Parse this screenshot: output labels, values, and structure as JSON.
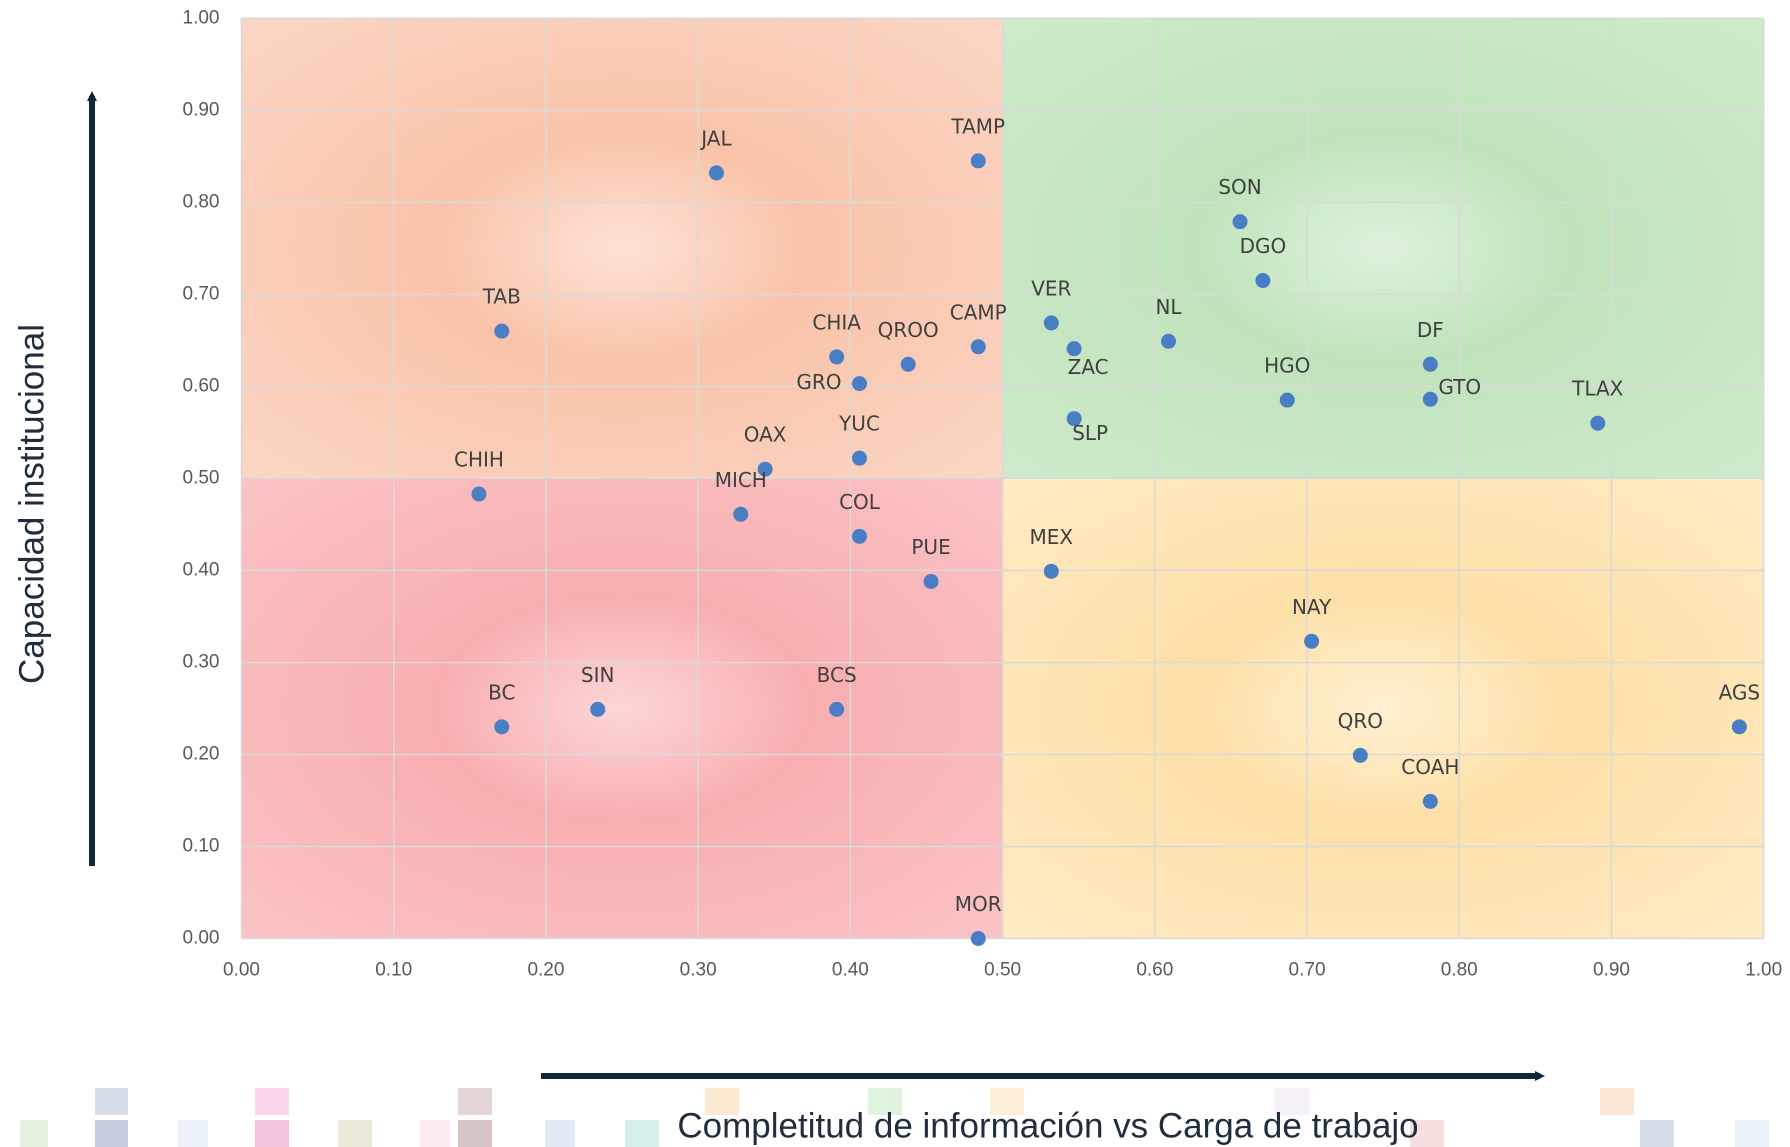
{
  "chart_data": {
    "type": "scatter",
    "x_axis_label": "Completitud de información vs Carga de trabajo",
    "y_axis_label": "Capacidad institucional",
    "color": "#4a7ec4",
    "point_labels": [
      "JAL",
      "TAMP",
      "SON",
      "DGO",
      "TAB",
      "VER",
      "CAMP",
      "NL",
      "CHIA",
      "QROO",
      "GRO",
      "ZAC",
      "DF",
      "HGO",
      "GTO",
      "SLP",
      "TLAX",
      "OAX",
      "YUC",
      "CHIH",
      "MICH",
      "COL",
      "PUE",
      "MEX",
      "NAY",
      "BC",
      "SIN",
      "BCS",
      "QRO",
      "COAH",
      "AGS",
      "MOR"
    ],
    "x": [
      0.312,
      0.484,
      0.656,
      0.671,
      0.171,
      0.532,
      0.484,
      0.609,
      0.391,
      0.438,
      0.406,
      0.547,
      0.781,
      0.687,
      0.781,
      0.547,
      0.891,
      0.344,
      0.406,
      0.156,
      0.328,
      0.406,
      0.453,
      0.532,
      0.703,
      0.171,
      0.234,
      0.391,
      0.735,
      0.781,
      0.984,
      0.484
    ],
    "values": [
      0.832,
      0.845,
      0.779,
      0.715,
      0.66,
      0.669,
      0.643,
      0.649,
      0.632,
      0.624,
      0.603,
      0.641,
      0.624,
      0.585,
      0.586,
      0.565,
      0.56,
      0.51,
      0.522,
      0.483,
      0.461,
      0.437,
      0.388,
      0.399,
      0.323,
      0.23,
      0.249,
      0.249,
      0.199,
      0.149,
      0.23,
      0.0
    ],
    "xlim": [
      0,
      1
    ],
    "ylim": [
      0,
      1
    ],
    "xticks": [
      {
        "value": 0,
        "label": "0.00"
      },
      {
        "value": 0.1,
        "label": "0.10"
      },
      {
        "value": 0.2,
        "label": "0.20"
      },
      {
        "value": 0.3,
        "label": "0.30"
      },
      {
        "value": 0.4,
        "label": "0.40"
      },
      {
        "value": 0.5,
        "label": "0.50"
      },
      {
        "value": 0.6,
        "label": "0.60"
      },
      {
        "value": 0.7,
        "label": "0.70"
      },
      {
        "value": 0.8,
        "label": "0.80"
      },
      {
        "value": 0.9,
        "label": "0.90"
      },
      {
        "value": 1,
        "label": "1.00"
      }
    ],
    "yticks": [
      {
        "value": 0,
        "label": "0.00"
      },
      {
        "value": 0.1,
        "label": "0.10"
      },
      {
        "value": 0.2,
        "label": "0.20"
      },
      {
        "value": 0.3,
        "label": "0.30"
      },
      {
        "value": 0.4,
        "label": "0.40"
      },
      {
        "value": 0.5,
        "label": "0.50"
      },
      {
        "value": 0.6,
        "label": "0.60"
      },
      {
        "value": 0.7,
        "label": "0.70"
      },
      {
        "value": 0.8,
        "label": "0.80"
      },
      {
        "value": 0.9,
        "label": "0.90"
      },
      {
        "value": 1,
        "label": "1.00"
      }
    ],
    "grid": true
  }
}
